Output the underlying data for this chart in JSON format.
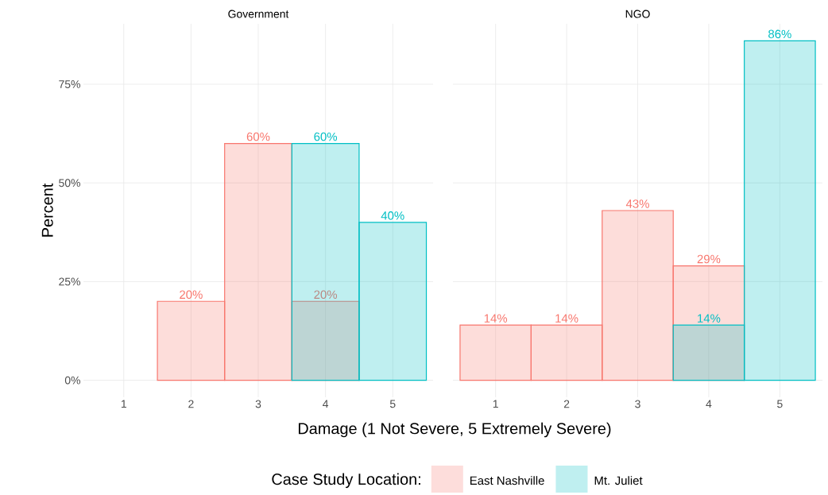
{
  "chart_data": [
    {
      "type": "bar",
      "title": "Government",
      "xlabel": "Damage (1 Not Severe, 5 Extremely Severe)",
      "ylabel": "Percent",
      "legend_title": "Case Study Location:",
      "legend": "bottom",
      "grid": true,
      "categories": [
        "1",
        "2",
        "3",
        "4",
        "5"
      ],
      "ylim": [
        -4.3,
        90.3
      ],
      "yticks": [
        {
          "value": 0,
          "label": "0%"
        },
        {
          "value": 25,
          "label": "25%"
        },
        {
          "value": 50,
          "label": "50%"
        },
        {
          "value": 75,
          "label": "75%"
        }
      ],
      "series": [
        {
          "name": "East Nashville",
          "color": "#f8766d",
          "values": [
            null,
            20,
            60,
            20,
            null
          ],
          "value_labels": [
            null,
            "20%",
            "60%",
            "20%",
            null
          ]
        },
        {
          "name": "Mt. Juliet",
          "color": "#00bfc4",
          "values": [
            null,
            null,
            null,
            60,
            40
          ],
          "value_labels": [
            null,
            null,
            null,
            "60%",
            "40%"
          ]
        }
      ]
    },
    {
      "type": "bar",
      "title": "NGO",
      "grid": true,
      "tick_labels": "x",
      "categories": [
        "1",
        "2",
        "3",
        "4",
        "5"
      ],
      "ylim": [
        -4.3,
        90.3
      ],
      "yticks": [
        0,
        25,
        50,
        75
      ],
      "series": [
        {
          "color": "#f8766d",
          "values": [
            14,
            14,
            43,
            29,
            null
          ],
          "value_labels": [
            "14%",
            "14%",
            "43%",
            "29%",
            null
          ]
        },
        {
          "color": "#00bfc4",
          "values": [
            null,
            null,
            null,
            14,
            86
          ],
          "value_labels": [
            null,
            null,
            null,
            "14%",
            "86%"
          ]
        }
      ]
    }
  ]
}
